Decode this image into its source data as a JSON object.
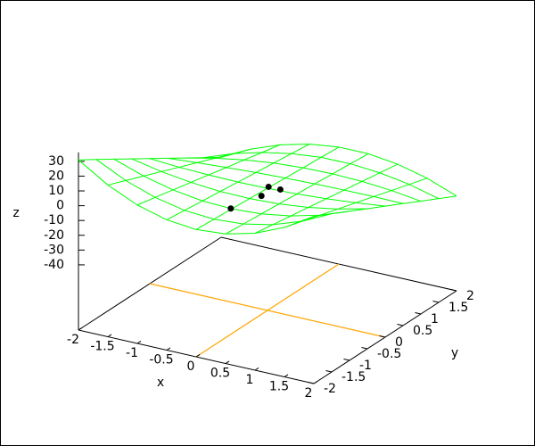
{
  "chart_data": {
    "type": "surface",
    "xlabel": "x",
    "ylabel": "y",
    "zlabel": "z",
    "xlim": [
      -2,
      2
    ],
    "ylim": [
      -2,
      2
    ],
    "zlim": [
      -40,
      36
    ],
    "xticks": [
      -2,
      -1.5,
      -1,
      -0.5,
      0,
      0.5,
      1,
      1.5,
      2
    ],
    "yticks": [
      -2,
      -1.5,
      -1,
      -0.5,
      0,
      0.5,
      1,
      1.5,
      2
    ],
    "zticks": [
      30,
      20,
      10,
      0,
      -10,
      -20,
      -30,
      -40
    ],
    "zeroaxis_color": "#ffa500",
    "surface": {
      "color": "#00ff00",
      "x": [
        -2,
        -1.5,
        -1,
        -0.5,
        0,
        0.5,
        1,
        1.5,
        2
      ],
      "y": [
        -2,
        -1.5,
        -1,
        -0.5,
        0,
        0.5,
        1,
        1.5,
        2
      ],
      "z": [
        [
          31,
          18.5,
          9.5,
          4,
          2,
          3.5,
          8.5,
          17,
          29
        ],
        [
          23.4,
          13.7,
          6.8,
          2.6,
          1.1,
          2.4,
          6.5,
          13.3,
          22.9
        ],
        [
          15.8,
          8.9,
          4,
          1.1,
          0.3,
          1.4,
          4.5,
          9.6,
          16.8
        ],
        [
          8.1,
          4.1,
          1.3,
          -0.3,
          -0.6,
          0.3,
          2.5,
          5.9,
          10.6
        ],
        [
          0.5,
          -0.8,
          -1.5,
          -1.8,
          -1.5,
          -0.8,
          0.5,
          2.3,
          4.5
        ],
        [
          -7.1,
          -5.6,
          -4.3,
          -3.2,
          -2.4,
          -1.8,
          -1.5,
          -1.4,
          -1.6
        ],
        [
          -14.8,
          -10.4,
          -7,
          -4.6,
          -3.3,
          -2.9,
          -3.5,
          -5.1,
          -7.8
        ],
        [
          -22.4,
          -15.2,
          -9.8,
          -6.1,
          -4.1,
          -3.9,
          -5.5,
          -8.8,
          -13.9
        ],
        [
          -30,
          -20,
          -12.5,
          -7.5,
          -5,
          -5,
          -7.5,
          -12.5,
          -20
        ]
      ]
    },
    "points": {
      "color": "#000000",
      "x": [
        -0.2,
        0.2,
        0.2,
        0.4
      ],
      "y": [
        -0.7,
        -0.5,
        -0.3,
        -0.3
      ],
      "z": [
        -6,
        3,
        6,
        6
      ]
    }
  }
}
